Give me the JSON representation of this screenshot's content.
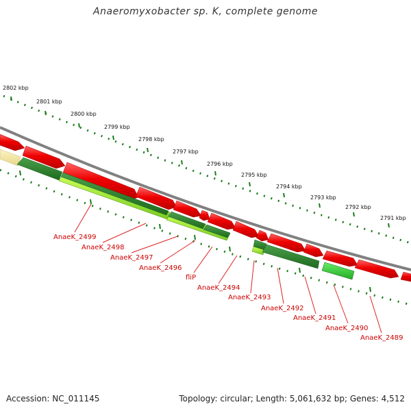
{
  "title": "Anaeromyxobacter sp. K, complete genome",
  "footer": {
    "accession": "Accession: NC_011145",
    "summary": "Topology: circular; Length: 5,061,632 bp; Genes: 4,512"
  },
  "scale_labels": [
    "2802 kbp",
    "2801 kbp",
    "2800 kbp",
    "2799 kbp",
    "2798 kbp",
    "2797 kbp",
    "2796 kbp",
    "2795 kbp",
    "2794 kbp",
    "2793 kbp",
    "2792 kbp",
    "2791 kbp"
  ],
  "gene_labels": [
    "AnaeK_2499",
    "AnaeK_2498",
    "AnaeK_2497",
    "AnaeK_2496",
    "fliP",
    "AnaeK_2494",
    "AnaeK_2493",
    "AnaeK_2492",
    "AnaeK_2491",
    "AnaeK_2490",
    "AnaeK_2489"
  ],
  "colors": {
    "backbone": "#808080",
    "forward_gene": "#ee0000",
    "reverse_gene_dark": "#2a7a2a",
    "reverse_gene_light": "#99ee33",
    "reverse_gene_mid": "#33cc33",
    "partial_feature": "#f2e6a0",
    "ruler": "#1a7a1a",
    "label": "#cc0000"
  }
}
